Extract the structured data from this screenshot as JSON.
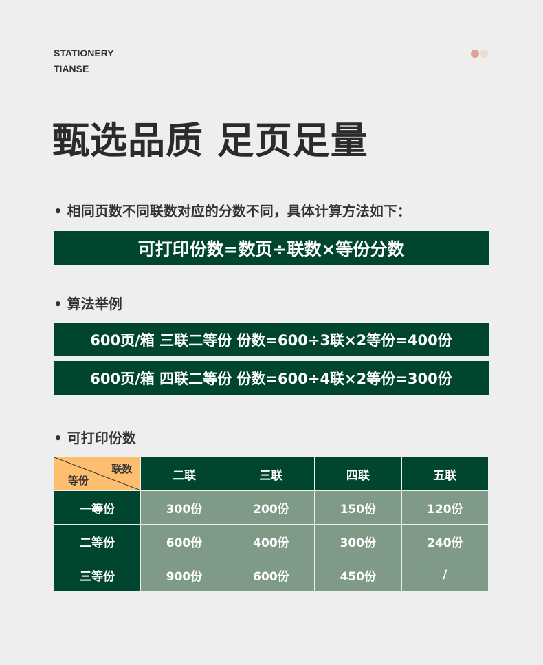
{
  "brand": {
    "line1": "STATIONERY",
    "line2": "TIANSE"
  },
  "colors": {
    "dot1": "#dfa497",
    "dot2": "#ecdcd0",
    "green": "#00452d",
    "light": "#7f9a86",
    "corner": "#fdbf6f"
  },
  "title": "甄选品质 足页足量",
  "section1": {
    "label": "• 相同页数不同联数对应的分数不同，具体计算方法如下：",
    "formula": "可打印份数=数页÷联数×等份分数"
  },
  "section2": {
    "label": "• 算法举例",
    "examples": [
      "600页/箱 三联二等份 份数=600÷3联×2等份=400份",
      "600页/箱 四联二等份 份数=600÷4联×2等份=300份"
    ]
  },
  "section3": {
    "label": "• 可打印份数",
    "table": {
      "corner_top": "联数",
      "corner_bottom": "等份",
      "columns": [
        "二联",
        "三联",
        "四联",
        "五联"
      ],
      "rows": [
        {
          "label": "一等份",
          "cells": [
            "300份",
            "200份",
            "150份",
            "120份"
          ]
        },
        {
          "label": "二等份",
          "cells": [
            "600份",
            "400份",
            "300份",
            "240份"
          ]
        },
        {
          "label": "三等份",
          "cells": [
            "900份",
            "600份",
            "450份",
            "/"
          ]
        }
      ]
    }
  }
}
